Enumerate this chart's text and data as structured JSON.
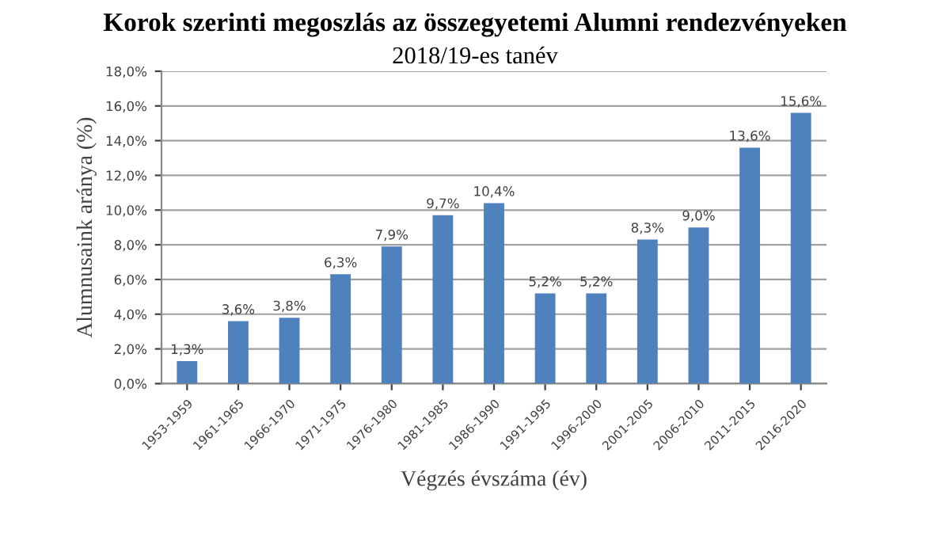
{
  "chart_data": {
    "type": "bar",
    "title": "Korok szerinti megoszlás az összegyetemi Alumni rendezvényeken",
    "subtitle": "2018/19-es tanév",
    "xlabel": "Végzés évszáma (év)",
    "ylabel": "Alumnusaink aránya (%)",
    "categories": [
      "1953-1959",
      "1961-1965",
      "1966-1970",
      "1971-1975",
      "1976-1980",
      "1981-1985",
      "1986-1990",
      "1991-1995",
      "1996-2000",
      "2001-2005",
      "2006-2010",
      "2011-2015",
      "2016-2020"
    ],
    "values": [
      1.3,
      3.6,
      3.8,
      6.3,
      7.9,
      9.7,
      10.4,
      5.2,
      5.2,
      8.3,
      9.0,
      13.6,
      15.6
    ],
    "value_labels": [
      "1,3%",
      "3,6%",
      "3,8%",
      "6,3%",
      "7,9%",
      "9,7%",
      "10,4%",
      "5,2%",
      "5,2%",
      "8,3%",
      "9,0%",
      "13,6%",
      "15,6%"
    ],
    "color": "#4f81bd",
    "ylim": [
      0,
      18
    ],
    "yticks": [
      {
        "value": 0,
        "label": "0,0%"
      },
      {
        "value": 2,
        "label": "2,0%"
      },
      {
        "value": 4,
        "label": "4,0%"
      },
      {
        "value": 6,
        "label": "6,0%"
      },
      {
        "value": 8,
        "label": "8,0%"
      },
      {
        "value": 10,
        "label": "10,0%"
      },
      {
        "value": 12,
        "label": "12,0%"
      },
      {
        "value": 14,
        "label": "14,0%"
      },
      {
        "value": 16,
        "label": "16,0%"
      },
      {
        "value": 18,
        "label": "18,0%"
      }
    ],
    "grid": "y",
    "legend": false
  }
}
